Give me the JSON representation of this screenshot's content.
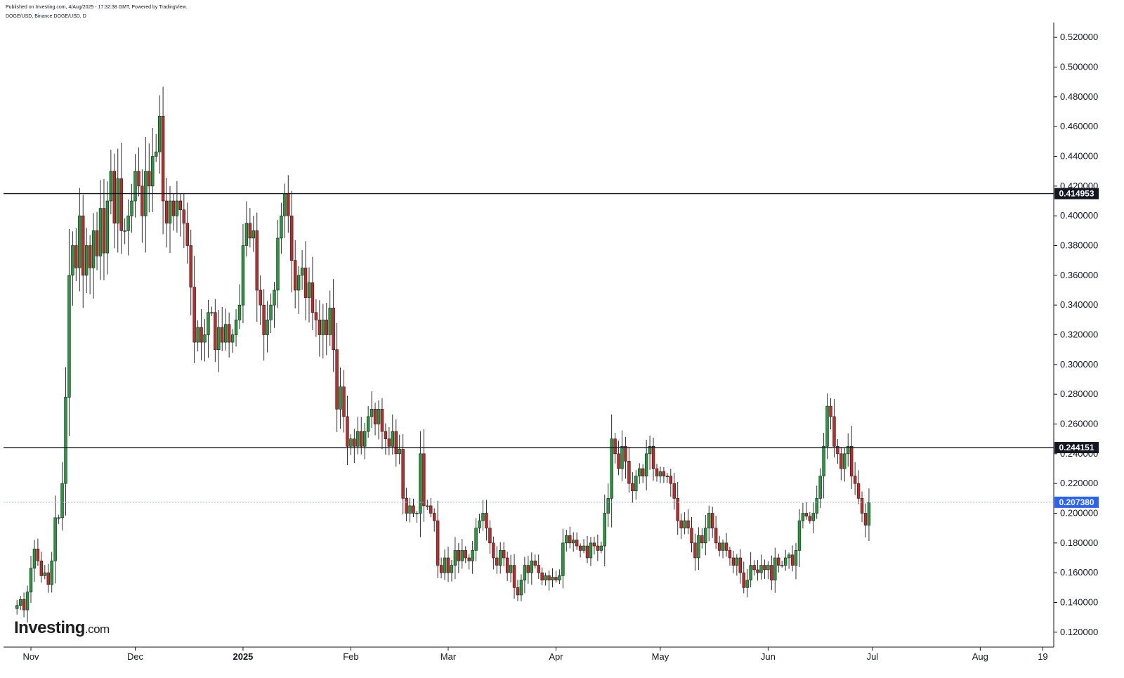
{
  "header": {
    "published": "Published on Investing.com, 4/Aug/2025 - 17:32:38 GMT, Powered by TradingView.",
    "symbol": "DOGE/USD, Binance:DOGE/USD, D"
  },
  "logo": {
    "name": "Investing",
    "suffix": ".com"
  },
  "colors": {
    "up": "#239a3b",
    "down": "#c62828",
    "wick": "#2d2d2d",
    "line": "#131722",
    "current": "#2962ff"
  },
  "chart_data": {
    "type": "candlestick",
    "title": "",
    "ylim": [
      0.11,
      0.53
    ],
    "y_ticks": [
      "0.120000",
      "0.140000",
      "0.160000",
      "0.180000",
      "0.200000",
      "0.220000",
      "0.240000",
      "0.260000",
      "0.280000",
      "0.300000",
      "0.320000",
      "0.340000",
      "0.360000",
      "0.380000",
      "0.400000",
      "0.420000",
      "0.440000",
      "0.460000",
      "0.480000",
      "0.500000",
      "0.520000"
    ],
    "x_ticks": [
      {
        "label": "Nov",
        "date": "2024-11-01"
      },
      {
        "label": "Dec",
        "date": "2024-12-01"
      },
      {
        "label": "2025",
        "date": "2025-01-01",
        "bold": true
      },
      {
        "label": "Feb",
        "date": "2025-02-01"
      },
      {
        "label": "Mar",
        "date": "2025-03-01"
      },
      {
        "label": "Apr",
        "date": "2025-04-01"
      },
      {
        "label": "May",
        "date": "2025-05-01"
      },
      {
        "label": "Jun",
        "date": "2025-06-01"
      },
      {
        "label": "Jul",
        "date": "2025-07-01"
      },
      {
        "label": "Aug",
        "date": "2025-08-01"
      },
      {
        "label": "19",
        "date": "2025-08-19"
      }
    ],
    "horizontal_lines": [
      {
        "value": 0.414953,
        "label": "0.414953",
        "style": "solid"
      },
      {
        "value": 0.244151,
        "label": "0.244151",
        "style": "solid"
      }
    ],
    "last_price": {
      "value": 0.20738,
      "label": "0.207380"
    },
    "start_date": "2024-10-28",
    "closes": [
      0.138,
      0.142,
      0.135,
      0.147,
      0.163,
      0.176,
      0.168,
      0.158,
      0.16,
      0.152,
      0.168,
      0.197,
      0.197,
      0.22,
      0.278,
      0.36,
      0.38,
      0.365,
      0.4,
      0.36,
      0.38,
      0.365,
      0.39,
      0.373,
      0.405,
      0.375,
      0.41,
      0.43,
      0.395,
      0.425,
      0.39,
      0.39,
      0.4,
      0.41,
      0.43,
      0.42,
      0.4,
      0.43,
      0.42,
      0.44,
      0.443,
      0.467,
      0.41,
      0.395,
      0.41,
      0.4,
      0.41,
      0.404,
      0.395,
      0.38,
      0.352,
      0.315,
      0.325,
      0.315,
      0.32,
      0.335,
      0.335,
      0.31,
      0.325,
      0.315,
      0.327,
      0.315,
      0.32,
      0.33,
      0.34,
      0.38,
      0.395,
      0.385,
      0.39,
      0.35,
      0.34,
      0.32,
      0.33,
      0.34,
      0.35,
      0.385,
      0.4,
      0.415,
      0.4,
      0.37,
      0.35,
      0.36,
      0.365,
      0.345,
      0.355,
      0.335,
      0.33,
      0.32,
      0.33,
      0.32,
      0.338,
      0.31,
      0.27,
      0.285,
      0.265,
      0.245,
      0.25,
      0.245,
      0.255,
      0.245,
      0.255,
      0.265,
      0.27,
      0.26,
      0.27,
      0.255,
      0.25,
      0.245,
      0.255,
      0.24,
      0.243,
      0.21,
      0.2,
      0.205,
      0.2,
      0.2,
      0.24,
      0.205,
      0.205,
      0.2,
      0.195,
      0.165,
      0.16,
      0.17,
      0.16,
      0.165,
      0.175,
      0.168,
      0.175,
      0.17,
      0.168,
      0.175,
      0.19,
      0.195,
      0.2,
      0.19,
      0.18,
      0.17,
      0.165,
      0.175,
      0.17,
      0.16,
      0.165,
      0.15,
      0.145,
      0.155,
      0.165,
      0.16,
      0.168,
      0.165,
      0.16,
      0.155,
      0.158,
      0.155,
      0.157,
      0.155,
      0.158,
      0.18,
      0.185,
      0.18,
      0.182,
      0.178,
      0.175,
      0.178,
      0.17,
      0.18,
      0.178,
      0.175,
      0.178,
      0.2,
      0.21,
      0.25,
      0.24,
      0.23,
      0.245,
      0.235,
      0.22,
      0.215,
      0.225,
      0.23,
      0.225,
      0.24,
      0.245,
      0.23,
      0.225,
      0.228,
      0.225,
      0.225,
      0.22,
      0.21,
      0.195,
      0.19,
      0.195,
      0.19,
      0.18,
      0.17,
      0.185,
      0.18,
      0.19,
      0.2,
      0.19,
      0.18,
      0.175,
      0.18,
      0.175,
      0.17,
      0.165,
      0.17,
      0.16,
      0.15,
      0.155,
      0.165,
      0.162,
      0.16,
      0.165,
      0.162,
      0.165,
      0.155,
      0.17,
      0.165,
      0.165,
      0.17,
      0.172,
      0.165,
      0.175,
      0.195,
      0.2,
      0.198,
      0.195,
      0.2,
      0.21,
      0.225,
      0.245,
      0.272,
      0.265,
      0.245,
      0.24,
      0.23,
      0.24,
      0.245,
      0.225,
      0.22,
      0.21,
      0.2,
      0.192,
      0.20738
    ]
  }
}
